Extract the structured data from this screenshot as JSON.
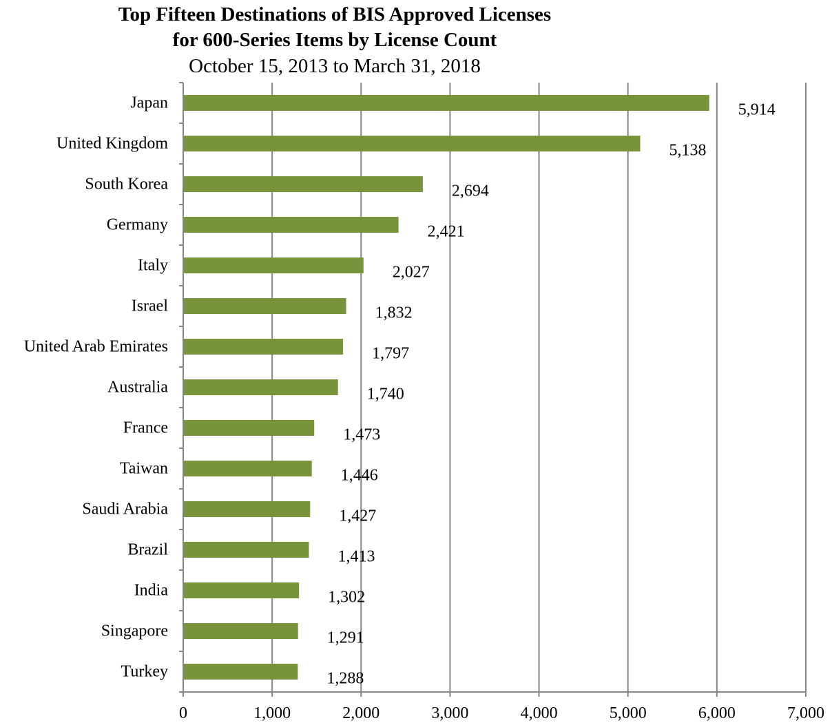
{
  "colors": {
    "bar": "#77933C",
    "gridline": "#868686",
    "axis": "#868686",
    "text": "#000000",
    "background": "#ffffff"
  },
  "chart_data": {
    "type": "bar",
    "orientation": "horizontal",
    "title_lines": [
      "Top Fifteen Destinations of BIS Approved Licenses",
      "for 600-Series  Items by License Count"
    ],
    "subtitle": "October 15, 2013  to March 31, 2018",
    "xlabel": "",
    "ylabel": "",
    "xlim": [
      0,
      7000
    ],
    "xticks": [
      0,
      1000,
      2000,
      3000,
      4000,
      5000,
      6000,
      7000
    ],
    "xtick_labels": [
      "0",
      "1,000",
      "2,000",
      "3,000",
      "4,000",
      "5,000",
      "6,000",
      "7,000"
    ],
    "grid": "vertical major gridlines",
    "legend": "none",
    "categories": [
      "Japan",
      "United Kingdom",
      "South Korea",
      "Germany",
      "Italy",
      "Israel",
      "United Arab Emirates",
      "Australia",
      "France",
      "Taiwan",
      "Saudi Arabia",
      "Brazil",
      "India",
      "Singapore",
      "Turkey"
    ],
    "values": [
      5914,
      5138,
      2694,
      2421,
      2027,
      1832,
      1797,
      1740,
      1473,
      1446,
      1427,
      1413,
      1302,
      1291,
      1288
    ],
    "data_labels": [
      "5,914",
      "5,138",
      "2,694",
      "2,421",
      "2,027",
      "1,832",
      "1,797",
      "1,740",
      "1,473",
      "1,446",
      "1,427",
      "1,413",
      "1,302",
      "1,291",
      "1,288"
    ]
  }
}
